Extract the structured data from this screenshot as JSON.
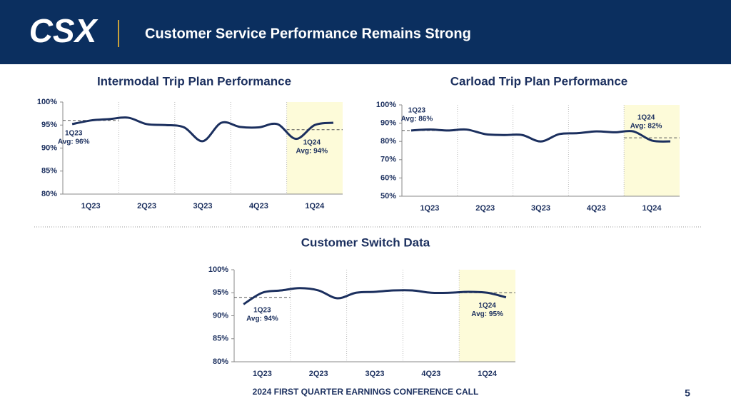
{
  "header": {
    "logo": "CSX",
    "title": "Customer Service Performance Remains Strong"
  },
  "footer": {
    "text": "2024 FIRST QUARTER EARNINGS CONFERENCE CALL",
    "page": "5"
  },
  "chart_data": [
    {
      "type": "line",
      "title": "Intermodal Trip Plan Performance",
      "categories": [
        null,
        "1Q23",
        null,
        null,
        "2Q23",
        null,
        null,
        "3Q23",
        null,
        null,
        "4Q23",
        null,
        null,
        "1Q24",
        null
      ],
      "series": [
        {
          "color": "#1b2f5e",
          "values": [
            95.2,
            96,
            96.3,
            96.6,
            95.2,
            95,
            94.5,
            91.5,
            95.5,
            94.6,
            94.5,
            95.2,
            92,
            95,
            95.5
          ]
        }
      ],
      "ylim": [
        80,
        100
      ],
      "yticks": [
        {
          "value": 80,
          "label": "80%"
        },
        {
          "value": 85,
          "label": "85%"
        },
        {
          "value": 90,
          "label": "90%"
        },
        {
          "value": 95,
          "label": "95%"
        },
        {
          "value": 100,
          "label": "100%"
        }
      ],
      "annotations": [
        {
          "quarter": "1Q23",
          "label": "Avg: 96%",
          "value": 96
        },
        {
          "quarter": "1Q24",
          "label": "Avg: 94%",
          "value": 94
        }
      ]
    },
    {
      "type": "line",
      "title": "Carload Trip Plan Performance",
      "categories": [
        null,
        "1Q23",
        null,
        null,
        "2Q23",
        null,
        null,
        "3Q23",
        null,
        null,
        "4Q23",
        null,
        null,
        "1Q24",
        null
      ],
      "series": [
        {
          "color": "#1b2f5e",
          "values": [
            86,
            86.5,
            86,
            86.5,
            84,
            83.5,
            83.5,
            80,
            84,
            84.5,
            85.5,
            85,
            85.5,
            80.5,
            80
          ]
        }
      ],
      "ylim": [
        50,
        100
      ],
      "yticks": [
        {
          "value": 50,
          "label": "50%"
        },
        {
          "value": 60,
          "label": "60%"
        },
        {
          "value": 70,
          "label": "70%"
        },
        {
          "value": 80,
          "label": "80%"
        },
        {
          "value": 90,
          "label": "90%"
        },
        {
          "value": 100,
          "label": "100%"
        }
      ],
      "annotations": [
        {
          "quarter": "1Q23",
          "label": "Avg: 86%",
          "value": 86
        },
        {
          "quarter": "1Q24",
          "label": "Avg: 82%",
          "value": 82
        }
      ]
    },
    {
      "type": "line",
      "title": "Customer Switch Data",
      "categories": [
        null,
        "1Q23",
        null,
        null,
        "2Q23",
        null,
        null,
        "3Q23",
        null,
        null,
        "4Q23",
        null,
        null,
        "1Q24",
        null
      ],
      "series": [
        {
          "color": "#1b2f5e",
          "values": [
            92.5,
            95,
            95.5,
            96,
            95.5,
            93.8,
            95,
            95.2,
            95.5,
            95.5,
            95,
            95,
            95.2,
            95,
            94
          ]
        }
      ],
      "ylim": [
        80,
        100
      ],
      "yticks": [
        {
          "value": 80,
          "label": "80%"
        },
        {
          "value": 85,
          "label": "85%"
        },
        {
          "value": 90,
          "label": "90%"
        },
        {
          "value": 95,
          "label": "95%"
        },
        {
          "value": 100,
          "label": "100%"
        }
      ],
      "annotations": [
        {
          "quarter": "1Q23",
          "label": "Avg: 94%",
          "value": 94
        },
        {
          "quarter": "1Q24",
          "label": "Avg: 95%",
          "value": 95
        }
      ]
    }
  ]
}
